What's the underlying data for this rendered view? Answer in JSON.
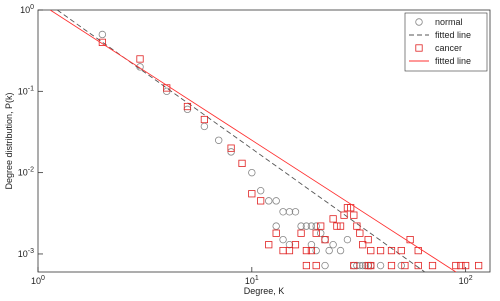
{
  "chart_data": {
    "type": "scatter",
    "xlabel": "Degree, K",
    "ylabel": "Degree distribution, P(k)",
    "log_x": true,
    "log_y": true,
    "xlim": [
      1,
      130
    ],
    "ylim": [
      0.0006,
      1
    ],
    "xticks": [
      {
        "value": 1,
        "label": "10^0"
      },
      {
        "value": 10,
        "label": "10^1"
      },
      {
        "value": 100,
        "label": "10^2"
      }
    ],
    "yticks": [
      {
        "value": 0.001,
        "label": "10^-3"
      },
      {
        "value": 0.01,
        "label": "10^-2"
      },
      {
        "value": 0.1,
        "label": "10^-1"
      },
      {
        "value": 1,
        "label": "10^0"
      }
    ],
    "legend": "upper right",
    "series": [
      {
        "name": "normal",
        "color": "#888888",
        "kind": "scatter",
        "marker": "circle",
        "x": [
          2,
          3,
          4,
          5,
          6,
          7,
          8,
          10,
          11,
          12,
          13,
          14,
          15,
          16,
          13,
          17,
          18,
          19,
          20,
          21,
          14,
          15,
          19,
          22,
          24,
          26,
          28,
          20,
          23,
          22,
          30,
          31,
          32,
          33,
          34,
          35,
          36,
          40,
          50
        ],
        "values": [
          0.5,
          0.2,
          0.1,
          0.06,
          0.037,
          0.025,
          0.018,
          0.01,
          0.006,
          0.0045,
          0.0045,
          0.0033,
          0.0033,
          0.0033,
          0.0022,
          0.0022,
          0.0022,
          0.0022,
          0.0022,
          0.0018,
          0.0015,
          0.0013,
          0.0013,
          0.0015,
          0.0013,
          0.0011,
          0.0015,
          0.0011,
          0.0011,
          0.00072,
          0.00072,
          0.00072,
          0.00072,
          0.00072,
          0.00072,
          0.00072,
          0.00072,
          0.00072,
          0.00072
        ]
      },
      {
        "name": "fitted line",
        "color": "#555555",
        "kind": "line",
        "dash": true,
        "x": [
          1.23,
          65
        ],
        "values": [
          1,
          0.00059
        ]
      },
      {
        "name": "cancer",
        "color": "#e02020",
        "kind": "scatter",
        "marker": "square",
        "x": [
          2,
          3,
          4,
          5,
          6,
          8,
          9,
          10,
          11,
          12,
          13,
          14,
          15,
          16,
          17,
          18,
          19,
          20,
          21,
          22,
          24,
          25,
          26,
          27,
          28,
          29,
          30,
          31,
          32,
          33,
          35,
          36,
          40,
          45,
          50,
          55,
          60,
          18,
          20,
          30,
          35,
          36,
          45,
          52,
          60,
          70,
          90,
          95,
          100,
          115
        ],
        "values": [
          0.4,
          0.25,
          0.11,
          0.065,
          0.045,
          0.02,
          0.013,
          0.0055,
          0.0045,
          0.0013,
          0.0018,
          0.0011,
          0.0011,
          0.0013,
          0.0018,
          0.0011,
          0.0011,
          0.0018,
          0.0022,
          0.0015,
          0.0027,
          0.0022,
          0.0022,
          0.003,
          0.0037,
          0.0037,
          0.003,
          0.0022,
          0.0018,
          0.0013,
          0.0015,
          0.0011,
          0.0011,
          0.0011,
          0.0011,
          0.0015,
          0.0011,
          0.00072,
          0.00072,
          0.00072,
          0.00072,
          0.00072,
          0.00072,
          0.00072,
          0.00072,
          0.00072,
          0.00072,
          0.00072,
          0.00072,
          0.00072
        ]
      },
      {
        "name": "fitted line",
        "color": "#ff3030",
        "kind": "line",
        "dash": false,
        "x": [
          1.14,
          91
        ],
        "values": [
          1,
          0.00059
        ]
      }
    ]
  }
}
